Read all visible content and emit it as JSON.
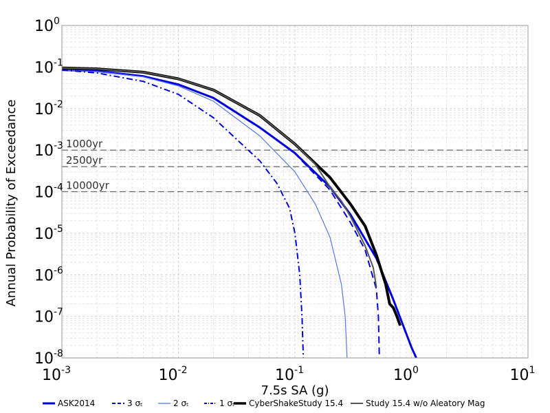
{
  "chart_data": {
    "type": "line",
    "title": "",
    "xlabel": "7.5s SA (g)",
    "ylabel": "Annual Probability of Exceedance",
    "x_scale": "log",
    "y_scale": "log",
    "xlim": [
      0.001,
      10
    ],
    "ylim": [
      1e-08,
      1
    ],
    "grid": true,
    "legend_position": "bottom",
    "x_ticks": [
      {
        "base": "10",
        "exp": "-3"
      },
      {
        "base": "10",
        "exp": "-2"
      },
      {
        "base": "10",
        "exp": "-1"
      },
      {
        "base": "10",
        "exp": "0"
      },
      {
        "base": "10",
        "exp": "1"
      }
    ],
    "y_ticks": [
      {
        "base": "10",
        "exp": "0"
      },
      {
        "base": "10",
        "exp": "-1"
      },
      {
        "base": "10",
        "exp": "-2"
      },
      {
        "base": "10",
        "exp": "-3"
      },
      {
        "base": "10",
        "exp": "-4"
      },
      {
        "base": "10",
        "exp": "-5"
      },
      {
        "base": "10",
        "exp": "-6"
      },
      {
        "base": "10",
        "exp": "-7"
      },
      {
        "base": "10",
        "exp": "-8"
      }
    ],
    "return_periods": [
      {
        "label": "1000yr",
        "y": 0.001
      },
      {
        "label": "2500yr",
        "y": 0.0004
      },
      {
        "label": "10000yr",
        "y": 0.0001
      }
    ],
    "series": [
      {
        "name": "ASK2014",
        "color": "#0000dd",
        "style": "solid",
        "width": 3,
        "points": [
          [
            0.001,
            0.085
          ],
          [
            0.002,
            0.08
          ],
          [
            0.005,
            0.06
          ],
          [
            0.01,
            0.038
          ],
          [
            0.02,
            0.018
          ],
          [
            0.05,
            0.0035
          ],
          [
            0.1,
            0.00085
          ],
          [
            0.2,
            0.00013
          ],
          [
            0.3,
            2.8e-05
          ],
          [
            0.5,
            2.5e-06
          ],
          [
            0.7,
            2.5e-07
          ],
          [
            1.0,
            1.8e-08
          ],
          [
            1.1,
            1e-08
          ]
        ]
      },
      {
        "name": "3 σₜ",
        "color": "#0000dd",
        "style": "dashed",
        "width": 2,
        "points": [
          [
            0.001,
            0.085
          ],
          [
            0.002,
            0.08
          ],
          [
            0.005,
            0.06
          ],
          [
            0.01,
            0.038
          ],
          [
            0.02,
            0.018
          ],
          [
            0.05,
            0.0035
          ],
          [
            0.1,
            0.00083
          ],
          [
            0.2,
            0.00011
          ],
          [
            0.3,
            1.8e-05
          ],
          [
            0.4,
            4e-06
          ],
          [
            0.5,
            4.5e-07
          ],
          [
            0.52,
            1e-07
          ],
          [
            0.53,
            1e-08
          ]
        ]
      },
      {
        "name": "2 σₜ",
        "color": "#5577ee",
        "style": "solid",
        "width": 1.2,
        "points": [
          [
            0.001,
            0.085
          ],
          [
            0.002,
            0.078
          ],
          [
            0.005,
            0.058
          ],
          [
            0.01,
            0.035
          ],
          [
            0.02,
            0.015
          ],
          [
            0.05,
            0.0022
          ],
          [
            0.1,
            0.0003
          ],
          [
            0.15,
            5e-05
          ],
          [
            0.2,
            8e-06
          ],
          [
            0.25,
            6e-07
          ],
          [
            0.27,
            1e-07
          ],
          [
            0.28,
            1e-08
          ]
        ]
      },
      {
        "name": "1 σₜ",
        "color": "#0000dd",
        "style": "dashdot",
        "width": 2,
        "points": [
          [
            0.001,
            0.085
          ],
          [
            0.002,
            0.072
          ],
          [
            0.005,
            0.045
          ],
          [
            0.01,
            0.022
          ],
          [
            0.02,
            0.006
          ],
          [
            0.05,
            0.00055
          ],
          [
            0.07,
            0.00016
          ],
          [
            0.09,
            4e-05
          ],
          [
            0.1,
            1e-05
          ],
          [
            0.11,
            1e-06
          ],
          [
            0.115,
            1e-07
          ],
          [
            0.118,
            1e-08
          ]
        ]
      },
      {
        "name": "CyberShakeStudy 15.4",
        "color": "#000000",
        "style": "solid",
        "width": 4,
        "points": [
          [
            0.001,
            0.095
          ],
          [
            0.002,
            0.09
          ],
          [
            0.005,
            0.075
          ],
          [
            0.01,
            0.052
          ],
          [
            0.02,
            0.028
          ],
          [
            0.05,
            0.0068
          ],
          [
            0.1,
            0.0014
          ],
          [
            0.2,
            0.00022
          ],
          [
            0.3,
            5e-05
          ],
          [
            0.4,
            1.5e-05
          ],
          [
            0.5,
            3e-06
          ],
          [
            0.6,
            6e-07
          ],
          [
            0.65,
            2e-07
          ],
          [
            0.7,
            1.6e-07
          ],
          [
            0.75,
            1e-07
          ],
          [
            0.8,
            6e-08
          ]
        ]
      },
      {
        "name": "Study 15.4 w/o Aleatory Mag",
        "color": "#555555",
        "style": "solid",
        "width": 2,
        "points": [
          [
            0.001,
            0.095
          ],
          [
            0.002,
            0.09
          ],
          [
            0.005,
            0.075
          ],
          [
            0.01,
            0.052
          ],
          [
            0.02,
            0.028
          ],
          [
            0.05,
            0.0068
          ],
          [
            0.1,
            0.0014
          ],
          [
            0.15,
            0.00045
          ],
          [
            0.2,
            0.00013
          ],
          [
            0.25,
            6e-05
          ],
          [
            0.3,
            2.5e-05
          ],
          [
            0.4,
            5e-06
          ],
          [
            0.47,
            1.5e-06
          ],
          [
            0.5,
            5e-07
          ]
        ]
      }
    ]
  }
}
